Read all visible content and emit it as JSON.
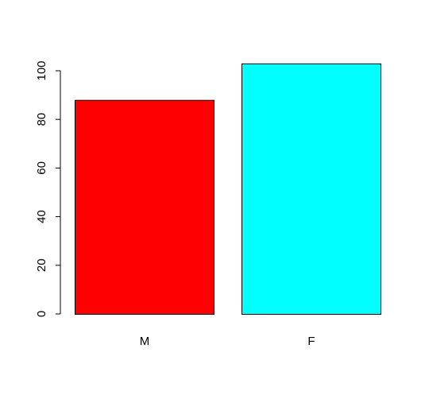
{
  "chart_data": {
    "type": "bar",
    "categories": [
      "M",
      "F"
    ],
    "values": [
      88,
      103
    ],
    "colors": [
      "#ff0000",
      "#00ffff"
    ],
    "ylim": [
      0,
      100
    ],
    "yticks": [
      0,
      20,
      40,
      60,
      80,
      100
    ],
    "ytick_labels": [
      "0",
      "20",
      "40",
      "60",
      "80",
      "100"
    ],
    "title": "",
    "xlabel": "",
    "ylabel": "",
    "grid": false,
    "legend": "none"
  }
}
